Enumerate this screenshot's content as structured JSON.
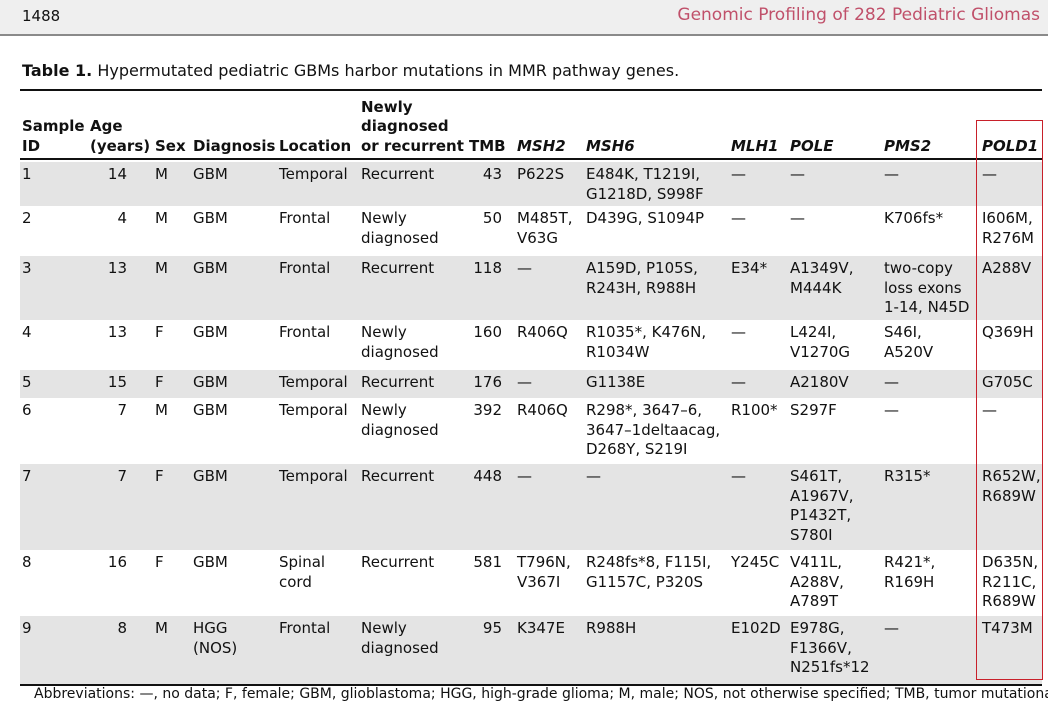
{
  "header": {
    "page_number": "1488",
    "running_title": "Genomic Profiling of 282 Pediatric Gliomas"
  },
  "caption": {
    "label": "Table 1.",
    "text": "Hypermutated pediatric GBMs harbor mutations in MMR pathway genes."
  },
  "table": {
    "columns": [
      "Sample\nID",
      "Age\n(years)",
      "Sex",
      "Diagnosis",
      "Location",
      "Newly\ndiagnosed\nor recurrent",
      "TMB",
      "MSH2",
      "MSH6",
      "MLH1",
      "POLE",
      "PMS2",
      "POLD1"
    ],
    "rows": [
      [
        "1",
        "14",
        "M",
        "GBM",
        "Temporal",
        "Recurrent",
        "43",
        "P622S",
        "E484K, T1219I,\nG1218D, S998F",
        "—",
        "—",
        "—",
        "—"
      ],
      [
        "2",
        "4",
        "M",
        "GBM",
        "Frontal",
        "Newly\ndiagnosed",
        "50",
        "M485T,\nV63G",
        "D439G, S1094P",
        "—",
        "—",
        "K706fs*",
        "I606M,\nR276M"
      ],
      [
        "3",
        "13",
        "M",
        "GBM",
        "Frontal",
        "Recurrent",
        "118",
        "—",
        "A159D, P105S,\nR243H, R988H",
        "E34*",
        "A1349V,\nM444K",
        "two-copy\nloss exons\n1-14, N45D",
        "A288V"
      ],
      [
        "4",
        "13",
        "F",
        "GBM",
        "Frontal",
        "Newly\ndiagnosed",
        "160",
        "R406Q",
        "R1035*, K476N,\nR1034W",
        "—",
        "L424I,\nV1270G",
        "S46I,\nA520V",
        "Q369H"
      ],
      [
        "5",
        "15",
        "F",
        "GBM",
        "Temporal",
        "Recurrent",
        "176",
        "—",
        "G1138E",
        "—",
        "A2180V",
        "—",
        "G705C"
      ],
      [
        "6",
        "7",
        "M",
        "GBM",
        "Temporal",
        "Newly\ndiagnosed",
        "392",
        "R406Q",
        "R298*, 3647–6,\n3647–1deltaacag,\nD268Y, S219I",
        "R100*",
        "S297F",
        "—",
        "—"
      ],
      [
        "7",
        "7",
        "F",
        "GBM",
        "Temporal",
        "Recurrent",
        "448",
        "—",
        "—",
        "—",
        "S461T,\nA1967V,\nP1432T,\nS780I",
        "R315*",
        "R652W,\nR689W"
      ],
      [
        "8",
        "16",
        "F",
        "GBM",
        "Spinal\ncord",
        "Recurrent",
        "581",
        "T796N,\nV367I",
        "R248fs*8, F115I,\nG1157C, P320S",
        "Y245C",
        "V411L,\nA288V,\nA789T",
        "R421*,\nR169H",
        "D635N,\nR211C,\nR689W"
      ],
      [
        "9",
        "8",
        "M",
        "HGG\n(NOS)",
        "Frontal",
        "Newly\ndiagnosed",
        "95",
        "K347E",
        "R988H",
        "E102D",
        "E978G,\nF1366V,\nN251fs*12",
        "—",
        "T473M"
      ]
    ]
  },
  "footnote": "Abbreviations: —, no data; F, female; GBM, glioblastoma; HGG, high-grade glioma; M, male; NOS, not otherwise specified; TMB, tumor mutational"
}
